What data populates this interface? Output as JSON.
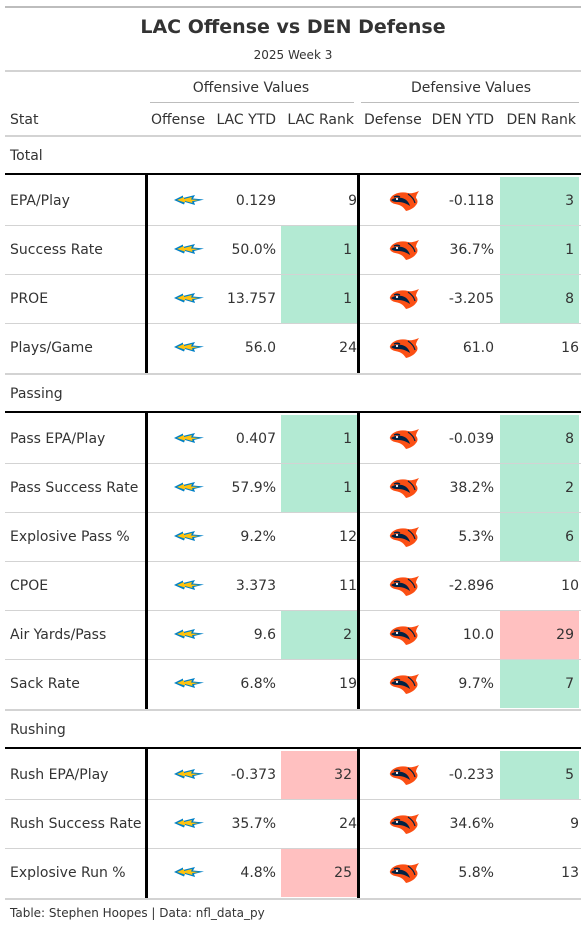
{
  "title": "LAC Offense vs DEN Defense",
  "subtitle": "2025 Week 3",
  "spanners": {
    "offense": "Offensive Values",
    "defense": "Defensive Values"
  },
  "columns": [
    "Stat",
    "Offense",
    "LAC YTD",
    "LAC Rank",
    "Defense",
    "DEN YTD",
    "DEN Rank"
  ],
  "logos": {
    "offense": "chargers-bolt-icon",
    "defense": "broncos-horse-icon"
  },
  "colors": {
    "good": "#b3ead3",
    "bad": "#ffc0c0",
    "chargers_blue": "#0080c6",
    "chargers_gold": "#ffc20e",
    "broncos_orange": "#fb4f14",
    "broncos_navy": "#002244"
  },
  "groups": [
    {
      "label": "Total",
      "rows": [
        {
          "stat": "EPA/Play",
          "lac_ytd": "0.129",
          "lac_rank": "9",
          "lac_hl": "",
          "den_ytd": "-0.118",
          "den_rank": "3",
          "den_hl": "good"
        },
        {
          "stat": "Success Rate",
          "lac_ytd": "50.0%",
          "lac_rank": "1",
          "lac_hl": "good",
          "den_ytd": "36.7%",
          "den_rank": "1",
          "den_hl": "good"
        },
        {
          "stat": "PROE",
          "lac_ytd": "13.757",
          "lac_rank": "1",
          "lac_hl": "good",
          "den_ytd": "-3.205",
          "den_rank": "8",
          "den_hl": "good"
        },
        {
          "stat": "Plays/Game",
          "lac_ytd": "56.0",
          "lac_rank": "24",
          "lac_hl": "",
          "den_ytd": "61.0",
          "den_rank": "16",
          "den_hl": ""
        }
      ]
    },
    {
      "label": "Passing",
      "rows": [
        {
          "stat": "Pass EPA/Play",
          "lac_ytd": "0.407",
          "lac_rank": "1",
          "lac_hl": "good",
          "den_ytd": "-0.039",
          "den_rank": "8",
          "den_hl": "good"
        },
        {
          "stat": "Pass Success Rate",
          "lac_ytd": "57.9%",
          "lac_rank": "1",
          "lac_hl": "good",
          "den_ytd": "38.2%",
          "den_rank": "2",
          "den_hl": "good"
        },
        {
          "stat": "Explosive Pass %",
          "lac_ytd": "9.2%",
          "lac_rank": "12",
          "lac_hl": "",
          "den_ytd": "5.3%",
          "den_rank": "6",
          "den_hl": "good"
        },
        {
          "stat": "CPOE",
          "lac_ytd": "3.373",
          "lac_rank": "11",
          "lac_hl": "",
          "den_ytd": "-2.896",
          "den_rank": "10",
          "den_hl": ""
        },
        {
          "stat": "Air Yards/Pass",
          "lac_ytd": "9.6",
          "lac_rank": "2",
          "lac_hl": "good",
          "den_ytd": "10.0",
          "den_rank": "29",
          "den_hl": "bad"
        },
        {
          "stat": "Sack Rate",
          "lac_ytd": "6.8%",
          "lac_rank": "19",
          "lac_hl": "",
          "den_ytd": "9.7%",
          "den_rank": "7",
          "den_hl": "good"
        }
      ]
    },
    {
      "label": "Rushing",
      "rows": [
        {
          "stat": "Rush EPA/Play",
          "lac_ytd": "-0.373",
          "lac_rank": "32",
          "lac_hl": "bad",
          "den_ytd": "-0.233",
          "den_rank": "5",
          "den_hl": "good"
        },
        {
          "stat": "Rush Success Rate",
          "lac_ytd": "35.7%",
          "lac_rank": "24",
          "lac_hl": "",
          "den_ytd": "34.6%",
          "den_rank": "9",
          "den_hl": ""
        },
        {
          "stat": "Explosive Run %",
          "lac_ytd": "4.8%",
          "lac_rank": "25",
          "lac_hl": "bad",
          "den_ytd": "5.8%",
          "den_rank": "13",
          "den_hl": ""
        }
      ]
    }
  ],
  "footer": "Table: Stephen Hoopes | Data: nfl_data_py"
}
